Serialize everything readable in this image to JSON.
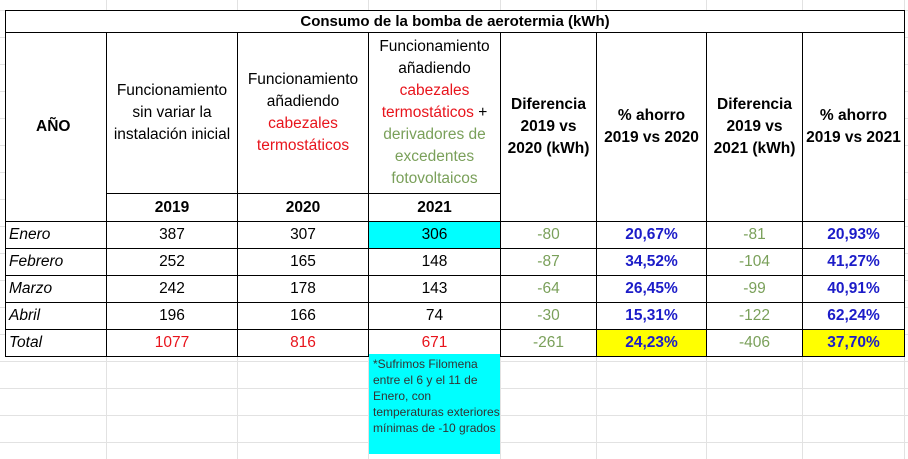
{
  "title": "Consumo de la bomba de aerotermia (kWh)",
  "headers": {
    "year_label": "AÑO",
    "col2019": "Funcionamiento sin variar la instalación inicial",
    "col2020_a": "Funcionamiento añadiendo",
    "col2020_b": "cabezales termostáticos",
    "col2021_a": "Funcionamiento añadiendo",
    "col2021_b": "cabezales termostáticos",
    "col2021_c": "+",
    "col2021_d": "derivadores de excedentes fotovoltaicos",
    "diff2020": "Diferencia 2019 vs 2020 (kWh)",
    "saving2020": "% ahorro 2019 vs 2020",
    "diff2021": "Diferencia 2019 vs 2021 (kWh)",
    "saving2021": "% ahorro 2019 vs 2021",
    "years": [
      "2019",
      "2020",
      "2021"
    ]
  },
  "rows": [
    {
      "month": "Enero",
      "y2019": "387",
      "y2020": "307",
      "y2021": "306",
      "d2020": "-80",
      "s2020": "20,67%",
      "d2021": "-81",
      "s2021": "20,93%"
    },
    {
      "month": "Febrero",
      "y2019": "252",
      "y2020": "165",
      "y2021": "148",
      "d2020": "-87",
      "s2020": "34,52%",
      "d2021": "-104",
      "s2021": "41,27%"
    },
    {
      "month": "Marzo",
      "y2019": "242",
      "y2020": "178",
      "y2021": "143",
      "d2020": "-64",
      "s2020": "26,45%",
      "d2021": "-99",
      "s2021": "40,91%"
    },
    {
      "month": "Abril",
      "y2019": "196",
      "y2020": "166",
      "y2021": "74",
      "d2020": "-30",
      "s2020": "15,31%",
      "d2021": "-122",
      "s2021": "62,24%"
    }
  ],
  "total": {
    "month": "Total",
    "y2019": "1077",
    "y2020": "816",
    "y2021": "671",
    "d2020": "-261",
    "s2020": "24,23%",
    "d2021": "-406",
    "s2021": "37,70%"
  },
  "note": "*Sufrimos Filomena entre el 6 y el 11 de Enero, con temperaturas exteriores mínimas de -10 grados",
  "colors": {
    "red": "#e8141c",
    "green": "#7aa05a",
    "blue": "#1c1cc8",
    "cyan": "#00ffff",
    "yellow": "#ffff00"
  }
}
